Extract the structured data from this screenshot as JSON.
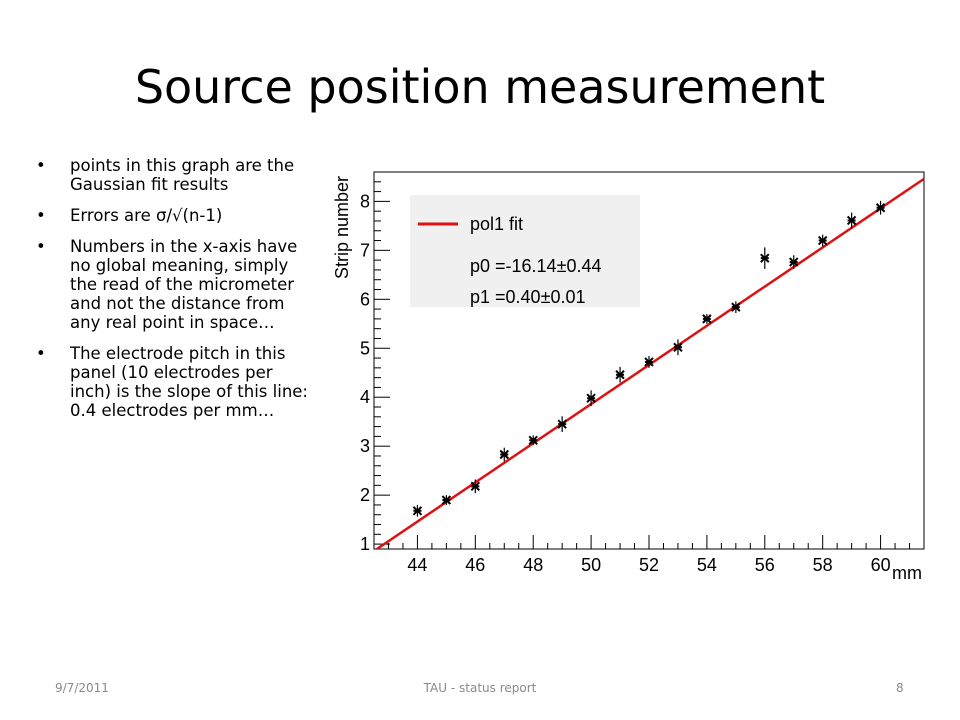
{
  "slide": {
    "title": "Source position measurement",
    "bullets": [
      "points in this graph are the Gaussian fit results",
      "Errors are σ/√(n-1)",
      "Numbers in the x-axis have no global meaning, simply the read of the micrometer and not the distance from any real point in space…",
      "The electrode pitch in this panel (10 electrodes per inch) is the slope of this line: 0.4 electrodes per mm…"
    ],
    "bullet_glyph": "•"
  },
  "footer": {
    "date": "9/7/2011",
    "center": "TAU - status report",
    "page": "8"
  },
  "chart_data": {
    "type": "scatter",
    "xlabel": "mm",
    "ylabel": "Strip number",
    "xlim": [
      42.5,
      61.5
    ],
    "ylim": [
      0.9,
      8.6
    ],
    "xticks": [
      44,
      46,
      48,
      50,
      52,
      54,
      56,
      58,
      60
    ],
    "yticks": [
      1,
      2,
      3,
      4,
      5,
      6,
      7,
      8
    ],
    "grid": false,
    "legend": {
      "placement": "top-left",
      "entry": "pol1 fit",
      "lines": [
        "p0 =-16.14±0.44",
        "p1 =0.40±0.01"
      ]
    },
    "points": {
      "x": [
        44,
        45,
        46,
        47,
        48,
        49,
        50,
        51,
        52,
        53,
        54,
        55,
        56,
        57,
        58,
        59,
        60
      ],
      "y": [
        1.68,
        1.9,
        2.18,
        2.83,
        3.12,
        3.45,
        3.98,
        4.46,
        4.72,
        5.02,
        5.6,
        5.84,
        6.84,
        6.76,
        7.2,
        7.61,
        7.87
      ],
      "yerr": [
        0.12,
        0.1,
        0.14,
        0.14,
        0.1,
        0.16,
        0.16,
        0.16,
        0.12,
        0.16,
        0.1,
        0.12,
        0.22,
        0.14,
        0.12,
        0.16,
        0.14
      ],
      "color": "#000000"
    },
    "fit": {
      "name": "pol1 fit",
      "p0": -16.14,
      "p1": 0.4,
      "color": "#dd1111"
    }
  }
}
